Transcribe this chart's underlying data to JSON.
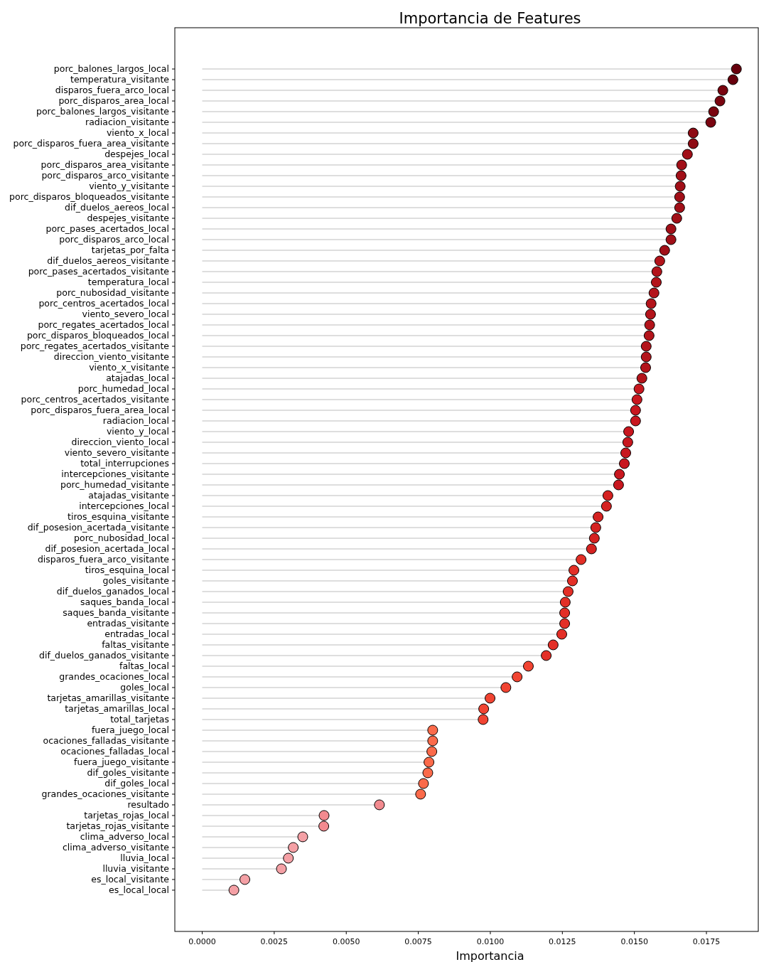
{
  "chart_data": {
    "type": "lollipop",
    "orientation": "horizontal",
    "title": "Importancia de Features",
    "xlabel": "Importancia",
    "marker": "circle",
    "categories": [
      "porc_balones_largos_local",
      "temperatura_visitante",
      "disparos_fuera_arco_local",
      "porc_disparos_area_local",
      "porc_balones_largos_visitante",
      "radiacion_visitante",
      "viento_x_local",
      "porc_disparos_fuera_area_visitante",
      "despejes_local",
      "porc_disparos_area_visitante",
      "porc_disparos_arco_visitante",
      "viento_y_visitante",
      "porc_disparos_bloqueados_visitante",
      "dif_duelos_aereos_local",
      "despejes_visitante",
      "porc_pases_acertados_local",
      "porc_disparos_arco_local",
      "tarjetas_por_falta",
      "dif_duelos_aereos_visitante",
      "porc_pases_acertados_visitante",
      "temperatura_local",
      "porc_nubosidad_visitante",
      "porc_centros_acertados_local",
      "viento_severo_local",
      "porc_regates_acertados_local",
      "porc_disparos_bloqueados_local",
      "porc_regates_acertados_visitante",
      "direccion_viento_visitante",
      "viento_x_visitante",
      "atajadas_local",
      "porc_humedad_local",
      "porc_centros_acertados_visitante",
      "porc_disparos_fuera_area_local",
      "radiacion_local",
      "viento_y_local",
      "direccion_viento_local",
      "viento_severo_visitante",
      "total_interrupciones",
      "intercepciones_visitante",
      "porc_humedad_visitante",
      "atajadas_visitante",
      "intercepciones_local",
      "tiros_esquina_visitante",
      "dif_posesion_acertada_visitante",
      "porc_nubosidad_local",
      "dif_posesion_acertada_local",
      "disparos_fuera_arco_visitante",
      "tiros_esquina_local",
      "goles_visitante",
      "dif_duelos_ganados_local",
      "saques_banda_local",
      "saques_banda_visitante",
      "entradas_visitante",
      "entradas_local",
      "faltas_visitante",
      "dif_duelos_ganados_visitante",
      "faltas_local",
      "grandes_ocaciones_local",
      "goles_local",
      "tarjetas_amarillas_visitante",
      "tarjetas_amarillas_local",
      "total_tarjetas",
      "fuera_juego_local",
      "ocaciones_falladas_visitante",
      "ocaciones_falladas_local",
      "fuera_juego_visitante",
      "dif_goles_visitante",
      "dif_goles_local",
      "grandes_ocaciones_visitante",
      "resultado",
      "tarjetas_rojas_local",
      "tarjetas_rojas_visitante",
      "clima_adverso_local",
      "clima_adverso_visitante",
      "lluvia_local",
      "lluvia_visitante",
      "es_local_visitante",
      "es_local_local"
    ],
    "values": [
      0.01854,
      0.01842,
      0.01807,
      0.01797,
      0.01775,
      0.01765,
      0.01704,
      0.01704,
      0.01684,
      0.01664,
      0.01662,
      0.01659,
      0.01657,
      0.01657,
      0.01647,
      0.01627,
      0.01627,
      0.01605,
      0.01588,
      0.01578,
      0.01576,
      0.01568,
      0.01558,
      0.01556,
      0.01553,
      0.01551,
      0.01541,
      0.01541,
      0.01539,
      0.01526,
      0.01516,
      0.01509,
      0.01504,
      0.01504,
      0.0148,
      0.01477,
      0.0147,
      0.01465,
      0.01448,
      0.01445,
      0.01408,
      0.01403,
      0.01374,
      0.01366,
      0.01361,
      0.01351,
      0.01315,
      0.0129,
      0.01285,
      0.0127,
      0.0126,
      0.01258,
      0.01258,
      0.01248,
      0.01218,
      0.01194,
      0.01132,
      0.01093,
      0.01054,
      0.00999,
      0.00977,
      0.00975,
      0.008,
      0.008,
      0.00797,
      0.00787,
      0.00783,
      0.00768,
      0.00758,
      0.00615,
      0.00423,
      0.00422,
      0.00349,
      0.00316,
      0.00299,
      0.00275,
      0.00148,
      0.0011
    ],
    "colors": [
      "#67000d",
      "#67000d",
      "#7a0510",
      "#7a0510",
      "#7a0510",
      "#7a0510",
      "#8e0b14",
      "#8e0b14",
      "#a10f18",
      "#a10f18",
      "#a10f18",
      "#a10f18",
      "#a10f18",
      "#a10f18",
      "#a10f18",
      "#a10f18",
      "#a10f18",
      "#a10f18",
      "#b3141b",
      "#b3141b",
      "#b3141b",
      "#b3141b",
      "#b3141b",
      "#b3141b",
      "#b3141b",
      "#b3141b",
      "#b3141b",
      "#b3141b",
      "#b3141b",
      "#b3141b",
      "#c8171f",
      "#c8171f",
      "#c8171f",
      "#c8171f",
      "#c8171f",
      "#c8171f",
      "#c8171f",
      "#c8171f",
      "#c8171f",
      "#c8171f",
      "#d52221",
      "#d52221",
      "#d52221",
      "#d52221",
      "#d52221",
      "#d52221",
      "#e32f27",
      "#e32f27",
      "#e32f27",
      "#e32f27",
      "#e32f27",
      "#e32f27",
      "#e32f27",
      "#e32f27",
      "#e32f27",
      "#e32f27",
      "#f14432",
      "#f14432",
      "#f14432",
      "#f14432",
      "#f14432",
      "#f14432",
      "#fb6a4a",
      "#fb6a4a",
      "#fb6a4a",
      "#fb6a4a",
      "#fb6a4a",
      "#fb6a4a",
      "#fb6a4a",
      "#f28a8f",
      "#f28a8f",
      "#f28a8f",
      "#f4a0a5",
      "#f4a0a5",
      "#f4a0a5",
      "#f4a0a5",
      "#f4a0a5",
      "#f4a0a5"
    ],
    "xlim": [
      -0.00095,
      0.0193
    ],
    "xticks": [
      {
        "value": 0,
        "label": "0.0000"
      },
      {
        "value": 0.0025,
        "label": "0.0025"
      },
      {
        "value": 0.005,
        "label": "0.0050"
      },
      {
        "value": 0.0075,
        "label": "0.0075"
      },
      {
        "value": 0.01,
        "label": "0.0100"
      },
      {
        "value": 0.0125,
        "label": "0.0125"
      },
      {
        "value": 0.015,
        "label": "0.0150"
      },
      {
        "value": 0.0175,
        "label": "0.0175"
      }
    ]
  }
}
